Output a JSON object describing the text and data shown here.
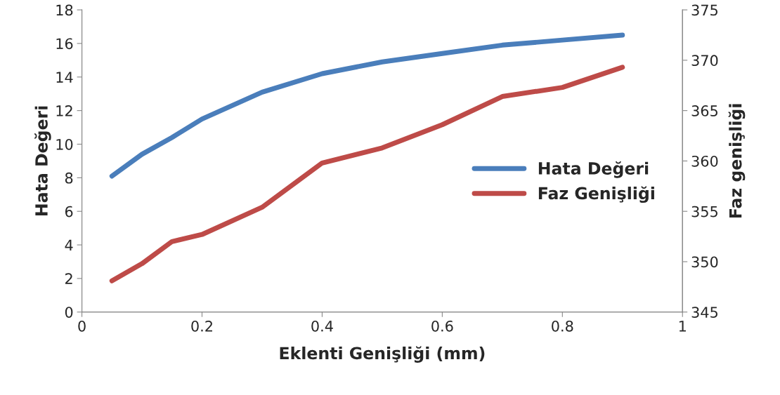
{
  "chart_data": {
    "type": "line",
    "xlabel": "Eklenti Genişliği (mm)",
    "ylabel": "Hata Değeri",
    "y2label": "Faz genişliği",
    "x": [
      0.05,
      0.1,
      0.15,
      0.2,
      0.3,
      0.4,
      0.5,
      0.6,
      0.7,
      0.8,
      0.9
    ],
    "series": [
      {
        "name": "Hata Değeri",
        "color": "#4a7ebb",
        "values": [
          8.1,
          9.4,
          10.4,
          11.5,
          13.1,
          14.2,
          14.9,
          15.4,
          15.9,
          16.2,
          16.5
        ]
      },
      {
        "name": "Faz Genişliği",
        "color": "#be4b48",
        "axis": "y2",
        "values": [
          348.1,
          349.8,
          352.0,
          352.7,
          355.4,
          359.8,
          361.3,
          363.6,
          366.4,
          367.3,
          369.3
        ]
      }
    ],
    "xlim": [
      0,
      1
    ],
    "xticks": [
      0,
      0.2,
      0.4,
      0.6,
      0.8,
      1
    ],
    "ylim": [
      0,
      18
    ],
    "yticks": [
      0,
      2,
      4,
      6,
      8,
      10,
      12,
      14,
      16,
      18
    ],
    "y2lim": [
      345,
      375
    ],
    "y2ticks": [
      345,
      350,
      355,
      360,
      365,
      370,
      375
    ],
    "legend": "right",
    "grid": false,
    "marker": "none",
    "line_style": "solid"
  }
}
